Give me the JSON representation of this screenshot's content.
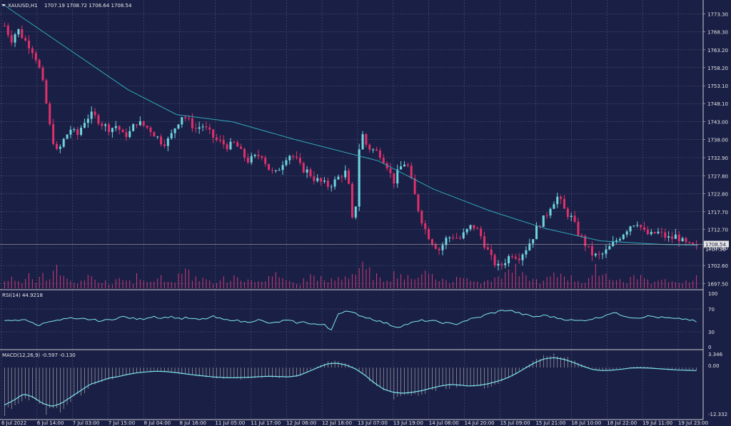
{
  "colors": {
    "background": "#1a1f45",
    "grid": "#5a6080",
    "bull": "#6fd6e0",
    "bear": "#e0306a",
    "ma_line": "#2fa8b8",
    "indicator_line": "#7fe7ef",
    "macd_hist": "#aaaaaa",
    "volume": "#d13a78",
    "text": "#e6e6e6",
    "price_tag": "#e6e6e6"
  },
  "header": {
    "symbol": "XAUUSD,H1",
    "ohlc": "1707.19 1708.72 1706.64 1708.54"
  },
  "current_price_label": "1708.54",
  "secondary_price_label": "1707.50",
  "rsi": {
    "label": "RSI(14) 44.9218",
    "levels": [
      "100",
      "70",
      "30",
      "0"
    ]
  },
  "macd": {
    "label": "MACD(12,26,9) -0.597 -0.130",
    "levels": [
      "3.346",
      "0.00",
      "-12.332"
    ]
  },
  "chart_data": {
    "type": "candlestick",
    "title": "XAUUSD,H1",
    "timeframe": "H1",
    "y_ticks": [
      "1773.30",
      "1768.30",
      "1763.20",
      "1758.20",
      "1753.10",
      "1748.10",
      "1743.00",
      "1738.00",
      "1732.90",
      "1727.80",
      "1722.80",
      "1717.70",
      "1712.70",
      "1707.60",
      "1702.60",
      "1697.50"
    ],
    "ylim": [
      1696.2,
      1776.0
    ],
    "x_ticks": [
      "6 Jul 2022",
      "6 Jul 14:00",
      "7 Jul 03:00",
      "7 Jul 15:00",
      "8 Jul 04:00",
      "8 Jul 16:00",
      "11 Jul 05:00",
      "11 Jul 17:00",
      "12 Jul 06:00",
      "12 Jul 18:00",
      "13 Jul 07:00",
      "13 Jul 19:00",
      "14 Jul 08:00",
      "14 Jul 20:00",
      "15 Jul 09:00",
      "15 Jul 21:00",
      "18 Jul 10:00",
      "18 Jul 22:00",
      "19 Jul 11:00",
      "19 Jul 23:00"
    ],
    "close_path": [
      1770,
      1766,
      1769,
      1766,
      1764,
      1760,
      1752,
      1740,
      1734,
      1738,
      1741,
      1739,
      1743,
      1745,
      1744,
      1742,
      1741,
      1742,
      1739,
      1740,
      1743,
      1742,
      1741,
      1739,
      1737,
      1738,
      1742,
      1745,
      1743,
      1741,
      1742,
      1740,
      1738,
      1737,
      1736,
      1737,
      1734,
      1732,
      1733,
      1734,
      1730,
      1728,
      1731,
      1734,
      1733,
      1730,
      1729,
      1727,
      1726,
      1725,
      1726,
      1728,
      1729,
      1711,
      1741,
      1736,
      1735,
      1734,
      1731,
      1726,
      1730,
      1732,
      1724,
      1717,
      1712,
      1709,
      1707,
      1710,
      1711,
      1710,
      1712,
      1714,
      1712,
      1708,
      1704,
      1702,
      1704,
      1706,
      1705,
      1707,
      1710,
      1714,
      1716,
      1720,
      1722,
      1718,
      1716,
      1712,
      1709,
      1706,
      1705,
      1706,
      1708,
      1710,
      1712,
      1714,
      1715,
      1712,
      1711,
      1712,
      1711,
      1710,
      1711,
      1709,
      1708,
      1707.6
    ],
    "moving_average": [
      [
        0,
        1782
      ],
      [
        0.18,
        1752
      ],
      [
        0.25,
        1745
      ],
      [
        0.33,
        1743
      ],
      [
        0.42,
        1738
      ],
      [
        0.54,
        1732
      ],
      [
        0.62,
        1724
      ],
      [
        0.7,
        1718
      ],
      [
        0.78,
        1713
      ],
      [
        0.86,
        1709.5
      ],
      [
        0.95,
        1708.5
      ],
      [
        1.0,
        1708.3
      ]
    ],
    "rsi_path": [
      46,
      48,
      47,
      52,
      44,
      38,
      42,
      48,
      47,
      50,
      52,
      49,
      51,
      50,
      48,
      47,
      49,
      52,
      55,
      53,
      51,
      50,
      54,
      56,
      52,
      55,
      54,
      51,
      53,
      50,
      49,
      52,
      55,
      51,
      48,
      50,
      46,
      45,
      47,
      49,
      44,
      42,
      45,
      48,
      46,
      43,
      45,
      42,
      40,
      39,
      28,
      60,
      66,
      63,
      60,
      55,
      52,
      48,
      44,
      40,
      35,
      38,
      42,
      45,
      48,
      47,
      46,
      44,
      42,
      40,
      45,
      49,
      52,
      55,
      60,
      63,
      66,
      68,
      65,
      61,
      58,
      55,
      56,
      58,
      54,
      52,
      50,
      48,
      47,
      49,
      51,
      53,
      58,
      63,
      60,
      57,
      54,
      53,
      55,
      56,
      54,
      53,
      52,
      50,
      51,
      49,
      45
    ],
    "macd_path": [
      -11.5,
      -10,
      -8,
      -9,
      -11,
      -12,
      -11,
      -9,
      -7,
      -5,
      -4,
      -3,
      -2.5,
      -1.8,
      -1.3,
      -1,
      -0.8,
      -0.9,
      -1.2,
      -1.6,
      -2,
      -2.3,
      -2.6,
      -2.8,
      -2.9,
      -2.8,
      -2.7,
      -2.5,
      -2.4,
      -2.5,
      -2.6,
      -2.2,
      -1,
      0.3,
      1.5,
      1.8,
      1.2,
      0,
      -2,
      -4.5,
      -6.5,
      -7.5,
      -7.8,
      -7.5,
      -7,
      -6.2,
      -5.5,
      -5,
      -5.2,
      -5.5,
      -5.3,
      -4.8,
      -4,
      -3,
      -1.5,
      0.3,
      2,
      3.2,
      3.5,
      3,
      2,
      0.8,
      -0.2,
      -0.6,
      -0.5,
      -0.2,
      0.2,
      0.3,
      0.2,
      0,
      -0.2,
      -0.4,
      -0.5,
      -0.6
    ],
    "volume_relative": [
      0.35,
      0.5,
      0.3,
      0.6,
      0.4,
      0.7,
      0.5,
      0.9,
      0.6,
      0.4,
      0.3,
      0.5,
      0.7,
      0.4,
      0.3,
      0.2,
      0.4,
      0.5,
      0.3,
      0.6,
      0.4,
      0.3,
      0.5,
      0.4,
      0.3,
      0.6,
      0.8,
      0.5,
      0.4,
      0.3,
      0.2,
      0.5,
      0.4,
      0.6,
      0.3,
      0.5,
      0.4,
      0.3,
      0.5,
      0.7,
      0.4,
      0.3,
      0.2,
      0.4,
      0.6,
      0.5,
      0.3,
      0.4,
      0.5,
      0.6,
      0.7,
      1.0,
      0.8,
      0.6,
      0.4,
      0.5,
      0.7,
      0.5,
      0.4,
      0.6,
      0.8,
      0.7,
      0.5,
      0.4,
      0.3,
      0.5,
      0.6,
      0.4,
      0.3,
      0.5,
      0.4,
      0.6,
      0.8,
      0.9,
      0.6,
      0.5,
      0.4,
      0.3,
      0.5,
      0.6,
      0.7,
      0.5,
      0.4,
      0.3,
      0.5,
      0.9,
      0.7,
      0.5,
      0.4,
      0.3,
      0.5,
      0.6,
      0.4,
      0.3,
      0.5,
      0.4,
      0.3,
      0.2,
      0.4,
      0.5
    ]
  }
}
